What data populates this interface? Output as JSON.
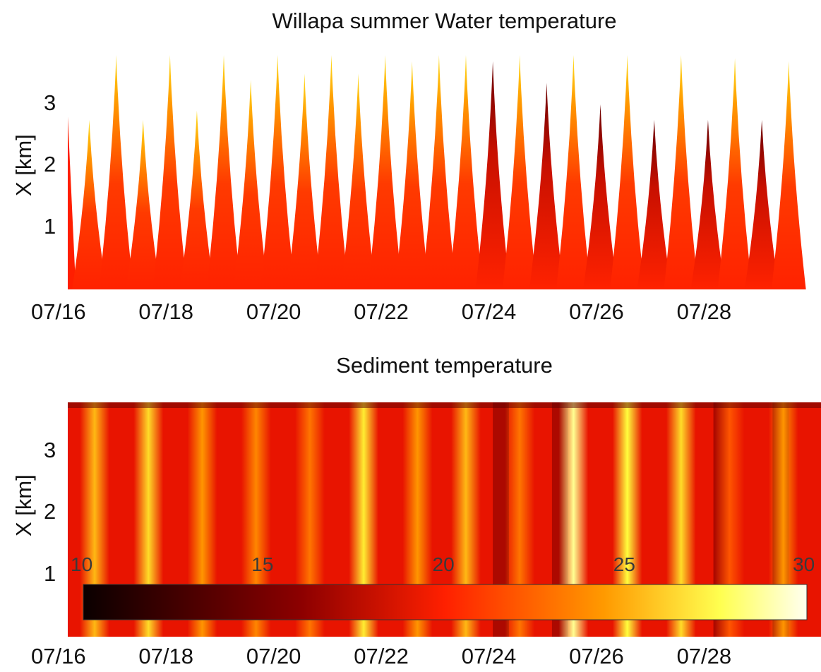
{
  "chart_data": [
    {
      "type": "area",
      "title": "Willapa summer Water temperature",
      "ylabel": "X [km]",
      "xlabel": "",
      "x_ticks": [
        "07/16",
        "07/18",
        "07/20",
        "07/22",
        "07/24",
        "07/26",
        "07/28"
      ],
      "y_ticks": [
        "1",
        "2",
        "3"
      ],
      "xlim": [
        "07/16",
        "07/30"
      ],
      "ylim": [
        0,
        3.8
      ],
      "series": [
        {
          "values": [
            {
              "day": 16.4,
              "x": 2.75
            },
            {
              "day": 16.9,
              "x": 3.8
            },
            {
              "day": 17.4,
              "x": 2.75
            },
            {
              "day": 17.9,
              "x": 3.8
            },
            {
              "day": 18.4,
              "x": 2.9
            },
            {
              "day": 18.9,
              "x": 3.8
            },
            {
              "day": 19.4,
              "x": 3.4
            },
            {
              "day": 19.9,
              "x": 3.8
            },
            {
              "day": 20.4,
              "x": 3.5
            },
            {
              "day": 20.9,
              "x": 3.8
            },
            {
              "day": 21.4,
              "x": 3.5
            },
            {
              "day": 21.9,
              "x": 3.8
            },
            {
              "day": 22.4,
              "x": 3.7
            },
            {
              "day": 22.9,
              "x": 3.8
            },
            {
              "day": 23.4,
              "x": 3.8
            },
            {
              "day": 23.9,
              "x": 3.7
            },
            {
              "day": 24.4,
              "x": 3.8
            },
            {
              "day": 24.9,
              "x": 3.35
            },
            {
              "day": 25.4,
              "x": 3.8
            },
            {
              "day": 25.9,
              "x": 3.0
            },
            {
              "day": 26.4,
              "x": 3.8
            },
            {
              "day": 26.9,
              "x": 2.75
            },
            {
              "day": 27.4,
              "x": 3.8
            },
            {
              "day": 27.9,
              "x": 2.75
            },
            {
              "day": 28.4,
              "x": 3.75
            },
            {
              "day": 28.9,
              "x": 2.75
            },
            {
              "day": 29.4,
              "x": 3.7
            }
          ]
        }
      ],
      "colors": {
        "low": "#1a0000",
        "mid": "#ff2a00",
        "high": "#ffff40",
        "max": "#ffffff"
      }
    },
    {
      "type": "heatmap",
      "title": "Sediment temperature",
      "ylabel": "X [km]",
      "xlabel": "",
      "x_ticks": [
        "07/16",
        "07/18",
        "07/20",
        "07/22",
        "07/24",
        "07/26",
        "07/28"
      ],
      "y_ticks": [
        "1",
        "2",
        "3"
      ],
      "xlim": [
        "07/16",
        "07/30"
      ],
      "ylim": [
        0,
        3.8
      ],
      "colorbar": {
        "ticks": [
          "10",
          "15",
          "20",
          "25",
          "30"
        ],
        "range": [
          10,
          30
        ]
      },
      "bands": [
        {
          "day": 16.5,
          "temp": 26
        },
        {
          "day": 17.5,
          "temp": 27
        },
        {
          "day": 18.5,
          "temp": 25
        },
        {
          "day": 19.5,
          "temp": 24.5
        },
        {
          "day": 20.5,
          "temp": 24
        },
        {
          "day": 21.5,
          "temp": 27.5
        },
        {
          "day": 22.5,
          "temp": 25
        },
        {
          "day": 23.4,
          "temp": 26
        },
        {
          "day": 24.4,
          "temp": 24
        },
        {
          "day": 25.4,
          "temp": 29
        },
        {
          "day": 26.4,
          "temp": 28
        },
        {
          "day": 27.4,
          "temp": 27
        },
        {
          "day": 28.3,
          "temp": 23
        },
        {
          "day": 29.3,
          "temp": 25
        }
      ]
    }
  ]
}
